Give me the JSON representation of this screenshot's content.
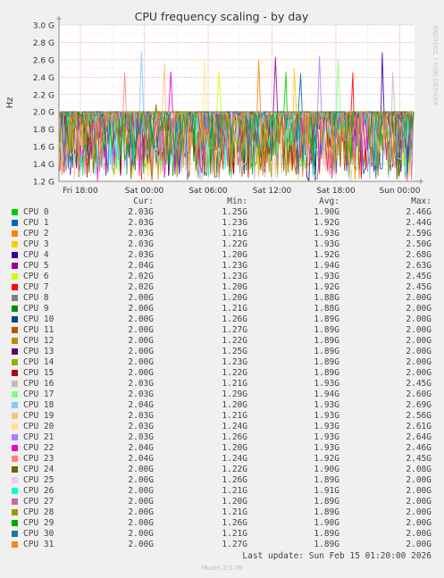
{
  "chart_data": {
    "type": "line",
    "title": "CPU frequency scaling - by day",
    "ylabel": "Hz",
    "ylim": [
      1.2,
      3.0
    ],
    "y_ticks": [
      "1.2 G",
      "1.4 G",
      "1.6 G",
      "1.8 G",
      "2.0 G",
      "2.2 G",
      "2.4 G",
      "2.6 G",
      "2.8 G",
      "3.0 G"
    ],
    "x_ticks": [
      "Fri 18:00",
      "Sat 00:00",
      "Sat 06:00",
      "Sat 12:00",
      "Sat 18:00",
      "Sun 00:00"
    ],
    "watermark": "RRDTOOL / TOBI OETIKER",
    "grid": true,
    "legend_headers": {
      "cur": "Cur:",
      "min": "Min:",
      "avg": "Avg:",
      "max": "Max:"
    },
    "series": [
      {
        "name": "CPU 0",
        "color": "#00cc00",
        "cur": "2.03G",
        "min": "1.25G",
        "avg": "1.90G",
        "max": "2.46G"
      },
      {
        "name": "CPU 1",
        "color": "#0066b3",
        "cur": "2.03G",
        "min": "1.23G",
        "avg": "1.92G",
        "max": "2.44G"
      },
      {
        "name": "CPU 2",
        "color": "#ff8000",
        "cur": "2.03G",
        "min": "1.21G",
        "avg": "1.93G",
        "max": "2.59G"
      },
      {
        "name": "CPU 3",
        "color": "#ffcc00",
        "cur": "2.03G",
        "min": "1.22G",
        "avg": "1.93G",
        "max": "2.50G"
      },
      {
        "name": "CPU 4",
        "color": "#330099",
        "cur": "2.03G",
        "min": "1.20G",
        "avg": "1.92G",
        "max": "2.68G"
      },
      {
        "name": "CPU 5",
        "color": "#990099",
        "cur": "2.04G",
        "min": "1.23G",
        "avg": "1.94G",
        "max": "2.63G"
      },
      {
        "name": "CPU 6",
        "color": "#ccff00",
        "cur": "2.02G",
        "min": "1.23G",
        "avg": "1.93G",
        "max": "2.45G"
      },
      {
        "name": "CPU 7",
        "color": "#ff0000",
        "cur": "2.02G",
        "min": "1.20G",
        "avg": "1.92G",
        "max": "2.45G"
      },
      {
        "name": "CPU 8",
        "color": "#808080",
        "cur": "2.00G",
        "min": "1.20G",
        "avg": "1.88G",
        "max": "2.00G"
      },
      {
        "name": "CPU 9",
        "color": "#008f00",
        "cur": "2.00G",
        "min": "1.21G",
        "avg": "1.88G",
        "max": "2.00G"
      },
      {
        "name": "CPU 10",
        "color": "#00487d",
        "cur": "2.00G",
        "min": "1.26G",
        "avg": "1.89G",
        "max": "2.00G"
      },
      {
        "name": "CPU 11",
        "color": "#b35a00",
        "cur": "2.00G",
        "min": "1.27G",
        "avg": "1.89G",
        "max": "2.00G"
      },
      {
        "name": "CPU 12",
        "color": "#b38f00",
        "cur": "2.00G",
        "min": "1.22G",
        "avg": "1.89G",
        "max": "2.00G"
      },
      {
        "name": "CPU 13",
        "color": "#6b006b",
        "cur": "2.00G",
        "min": "1.25G",
        "avg": "1.89G",
        "max": "2.00G"
      },
      {
        "name": "CPU 14",
        "color": "#8fb300",
        "cur": "2.00G",
        "min": "1.23G",
        "avg": "1.89G",
        "max": "2.00G"
      },
      {
        "name": "CPU 15",
        "color": "#b30000",
        "cur": "2.00G",
        "min": "1.22G",
        "avg": "1.89G",
        "max": "2.00G"
      },
      {
        "name": "CPU 16",
        "color": "#bebebe",
        "cur": "2.03G",
        "min": "1.21G",
        "avg": "1.93G",
        "max": "2.45G"
      },
      {
        "name": "CPU 17",
        "color": "#80ff80",
        "cur": "2.03G",
        "min": "1.29G",
        "avg": "1.94G",
        "max": "2.60G"
      },
      {
        "name": "CPU 18",
        "color": "#80c9ff",
        "cur": "2.04G",
        "min": "1.20G",
        "avg": "1.93G",
        "max": "2.69G"
      },
      {
        "name": "CPU 19",
        "color": "#ffc080",
        "cur": "2.03G",
        "min": "1.21G",
        "avg": "1.93G",
        "max": "2.56G"
      },
      {
        "name": "CPU 20",
        "color": "#ffe680",
        "cur": "2.03G",
        "min": "1.24G",
        "avg": "1.93G",
        "max": "2.61G"
      },
      {
        "name": "CPU 21",
        "color": "#aa80ff",
        "cur": "2.03G",
        "min": "1.26G",
        "avg": "1.93G",
        "max": "2.64G"
      },
      {
        "name": "CPU 22",
        "color": "#ee00cc",
        "cur": "2.04G",
        "min": "1.20G",
        "avg": "1.93G",
        "max": "2.46G"
      },
      {
        "name": "CPU 23",
        "color": "#ff8080",
        "cur": "2.04G",
        "min": "1.24G",
        "avg": "1.92G",
        "max": "2.45G"
      },
      {
        "name": "CPU 24",
        "color": "#666600",
        "cur": "2.00G",
        "min": "1.22G",
        "avg": "1.90G",
        "max": "2.08G"
      },
      {
        "name": "CPU 25",
        "color": "#ffbfff",
        "cur": "2.00G",
        "min": "1.26G",
        "avg": "1.89G",
        "max": "2.00G"
      },
      {
        "name": "CPU 26",
        "color": "#00ffcc",
        "cur": "2.00G",
        "min": "1.21G",
        "avg": "1.91G",
        "max": "2.00G"
      },
      {
        "name": "CPU 27",
        "color": "#cc6699",
        "cur": "2.00G",
        "min": "1.20G",
        "avg": "1.89G",
        "max": "2.00G"
      },
      {
        "name": "CPU 28",
        "color": "#999900",
        "cur": "2.00G",
        "min": "1.21G",
        "avg": "1.89G",
        "max": "2.00G"
      },
      {
        "name": "CPU 29",
        "color": "#00aa00",
        "cur": "2.00G",
        "min": "1.26G",
        "avg": "1.90G",
        "max": "2.00G"
      },
      {
        "name": "CPU 30",
        "color": "#1a75a8",
        "cur": "2.00G",
        "min": "1.21G",
        "avg": "1.89G",
        "max": "2.00G"
      },
      {
        "name": "CPU 31",
        "color": "#ee8c1a",
        "cur": "2.00G",
        "min": "1.27G",
        "avg": "1.89G",
        "max": "2.00G"
      }
    ]
  },
  "footer": {
    "last_update": "Last update: Sun Feb 15 01:20:00 2026",
    "munin": "Munin 2.0.76"
  }
}
